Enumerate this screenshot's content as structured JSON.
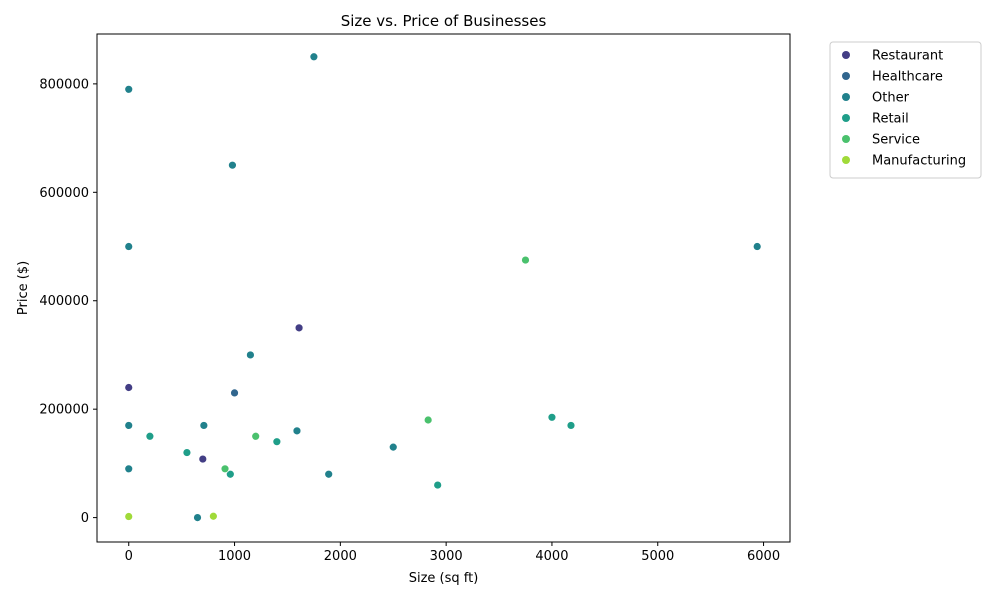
{
  "chart_data": {
    "type": "scatter",
    "title": "Size vs. Price of Businesses",
    "xlabel": "Size (sq ft)",
    "ylabel": "Price ($)",
    "xlim": [
      -300,
      6250
    ],
    "ylim": [
      -45000,
      892000
    ],
    "xticks": [
      0,
      1000,
      2000,
      3000,
      4000,
      5000,
      6000
    ],
    "yticks": [
      0,
      200000,
      400000,
      600000,
      800000
    ],
    "legend_position": "upper-right-outside",
    "grid": false,
    "series": [
      {
        "name": "Restaurant",
        "color": "#433e85",
        "points": [
          [
            1610,
            350000
          ],
          [
            0,
            240000
          ],
          [
            700,
            108000
          ]
        ]
      },
      {
        "name": "Healthcare",
        "color": "#31668e",
        "points": [
          [
            1000,
            230000
          ]
        ]
      },
      {
        "name": "Other",
        "color": "#21818c",
        "points": [
          [
            1750,
            850000
          ],
          [
            0,
            790000
          ],
          [
            980,
            650000
          ],
          [
            0,
            500000
          ],
          [
            5940,
            500000
          ],
          [
            1150,
            300000
          ],
          [
            710,
            170000
          ],
          [
            1590,
            160000
          ],
          [
            0,
            170000
          ],
          [
            2500,
            130000
          ],
          [
            0,
            90000
          ],
          [
            1890,
            80000
          ],
          [
            650,
            0
          ]
        ]
      },
      {
        "name": "Retail",
        "color": "#1f9e89",
        "points": [
          [
            4000,
            185000
          ],
          [
            4180,
            170000
          ],
          [
            200,
            150000
          ],
          [
            1400,
            140000
          ],
          [
            550,
            120000
          ],
          [
            960,
            80000
          ],
          [
            2920,
            60000
          ]
        ]
      },
      {
        "name": "Service",
        "color": "#4ac16d",
        "points": [
          [
            3750,
            475000
          ],
          [
            2830,
            180000
          ],
          [
            1200,
            150000
          ],
          [
            910,
            90000
          ]
        ]
      },
      {
        "name": "Manufacturing",
        "color": "#a0da39",
        "points": [
          [
            0,
            2000
          ],
          [
            800,
            2500
          ]
        ]
      }
    ]
  }
}
